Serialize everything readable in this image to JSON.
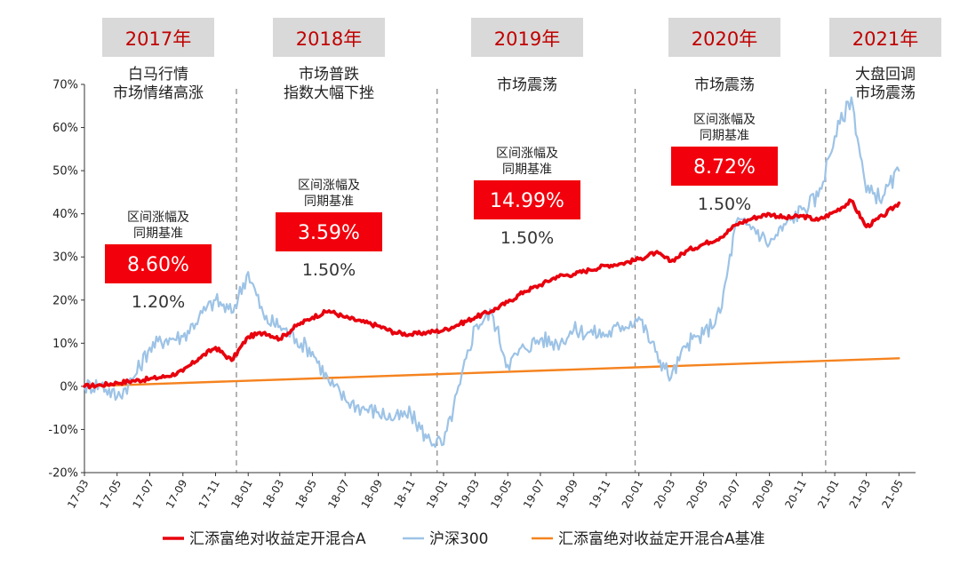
{
  "chart_data": {
    "type": "line",
    "title": "",
    "xlabel": "",
    "ylabel": "",
    "ylim": [
      -20,
      70
    ],
    "yticks": [
      -20,
      -10,
      0,
      10,
      20,
      30,
      40,
      50,
      60,
      70
    ],
    "ytick_labels": [
      "-20%",
      "-10%",
      "0%",
      "10%",
      "20%",
      "30%",
      "40%",
      "50%",
      "60%",
      "70%"
    ],
    "xlim": [
      "2017-03",
      "2021-06"
    ],
    "xtick_labels": [
      "17-03",
      "17-05",
      "17-07",
      "17-09",
      "17-11",
      "18-01",
      "18-03",
      "18-05",
      "18-07",
      "18-09",
      "18-11",
      "19-01",
      "19-03",
      "19-05",
      "19-07",
      "19-09",
      "19-11",
      "20-01",
      "20-03",
      "20-05",
      "20-07",
      "20-09",
      "20-11",
      "21-01",
      "21-03",
      "21-05"
    ],
    "grid": false,
    "legend_position": "bottom",
    "colors": {
      "fund": "#e8000d",
      "hs300": "#9dc3e6",
      "benchmark": "#f5831f",
      "year_box": "#d9d9d9",
      "year_text": "#c00000",
      "value_box": "#f2000c"
    },
    "series": [
      {
        "name": "汇添富绝对收益定开混合A",
        "x": [
          "2017-03",
          "2017-04",
          "2017-05",
          "2017-06",
          "2017-07",
          "2017-08",
          "2017-09",
          "2017-10",
          "2017-11",
          "2017-12",
          "2018-01",
          "2018-02",
          "2018-03",
          "2018-04",
          "2018-05",
          "2018-06",
          "2018-07",
          "2018-08",
          "2018-09",
          "2018-10",
          "2018-11",
          "2018-12",
          "2019-01",
          "2019-02",
          "2019-03",
          "2019-04",
          "2019-05",
          "2019-06",
          "2019-07",
          "2019-08",
          "2019-09",
          "2019-10",
          "2019-11",
          "2019-12",
          "2020-01",
          "2020-02",
          "2020-03",
          "2020-04",
          "2020-05",
          "2020-06",
          "2020-07",
          "2020-08",
          "2020-09",
          "2020-10",
          "2020-11",
          "2020-12",
          "2021-01",
          "2021-02",
          "2021-03",
          "2021-04",
          "2021-05"
        ],
        "values": [
          0,
          0.3,
          0.8,
          1.3,
          1.7,
          2.3,
          3.5,
          6.5,
          9.0,
          6.0,
          11.5,
          12.5,
          11.0,
          14.0,
          16.0,
          17.5,
          16.0,
          15.0,
          14.0,
          12.5,
          12.0,
          12.5,
          13.0,
          14.5,
          16.0,
          17.5,
          19.5,
          22.0,
          23.5,
          25.5,
          26.0,
          27.0,
          28.0,
          28.5,
          29.5,
          31.0,
          29.0,
          31.5,
          33.0,
          34.5,
          37.5,
          39.0,
          40.0,
          39.0,
          39.5,
          38.5,
          40.5,
          43.0,
          37.0,
          39.5,
          42.5
        ]
      },
      {
        "name": "沪深300",
        "x": [
          "2017-03",
          "2017-04",
          "2017-05",
          "2017-06",
          "2017-07",
          "2017-08",
          "2017-09",
          "2017-10",
          "2017-11",
          "2017-12",
          "2018-01",
          "2018-02",
          "2018-03",
          "2018-04",
          "2018-05",
          "2018-06",
          "2018-07",
          "2018-08",
          "2018-09",
          "2018-10",
          "2018-11",
          "2018-12",
          "2019-01",
          "2019-02",
          "2019-03",
          "2019-04",
          "2019-05",
          "2019-06",
          "2019-07",
          "2019-08",
          "2019-09",
          "2019-10",
          "2019-11",
          "2019-12",
          "2020-01",
          "2020-02",
          "2020-03",
          "2020-04",
          "2020-05",
          "2020-06",
          "2020-07",
          "2020-08",
          "2020-09",
          "2020-10",
          "2020-11",
          "2020-12",
          "2021-01",
          "2021-02",
          "2021-03",
          "2021-04",
          "2021-05"
        ],
        "values": [
          0,
          0.5,
          -2.5,
          2.0,
          9.0,
          11.0,
          11.5,
          16.0,
          20.0,
          17.0,
          26.5,
          15.5,
          14.0,
          11.0,
          8.0,
          1.0,
          -3.0,
          -5.0,
          -6.0,
          -7.5,
          -6.5,
          -12.0,
          -13.5,
          0.5,
          14.0,
          17.0,
          5.0,
          9.0,
          11.0,
          10.0,
          13.0,
          12.5,
          12.0,
          14.0,
          16.0,
          8.0,
          2.0,
          10.0,
          12.0,
          17.0,
          38.0,
          37.0,
          33.0,
          37.5,
          41.0,
          44.0,
          58.0,
          67.0,
          45.0,
          44.0,
          50.0
        ]
      },
      {
        "name": "汇添富绝对收益定开混合A基准",
        "x": [
          "2017-03",
          "2021-05"
        ],
        "values": [
          0,
          6.5
        ]
      }
    ],
    "periods": [
      {
        "year": "2017年",
        "desc": [
          "白马行情",
          "市场情绪高涨"
        ],
        "note": [
          "区间涨幅及",
          "同期基准"
        ],
        "value": "8.60%",
        "benchmark": "1.20%"
      },
      {
        "year": "2018年",
        "desc": [
          "市场普跌",
          "指数大幅下挫"
        ],
        "note": [
          "区间涨幅及",
          "同期基准"
        ],
        "value": "3.59%",
        "benchmark": "1.50%"
      },
      {
        "year": "2019年",
        "desc": [
          "市场震荡"
        ],
        "note": [
          "区间涨幅及",
          "同期基准"
        ],
        "value": "14.99%",
        "benchmark": "1.50%"
      },
      {
        "year": "2020年",
        "desc": [
          "市场震荡"
        ],
        "note": [
          "区间涨幅及",
          "同期基准"
        ],
        "value": "8.72%",
        "benchmark": "1.50%"
      },
      {
        "year": "2021年",
        "desc": [
          "大盘回调",
          "市场震荡"
        ],
        "note": [],
        "value": "",
        "benchmark": ""
      }
    ],
    "period_boundaries": [
      "2017-12-10",
      "2018-12-20",
      "2019-12-25",
      "2020-12-15"
    ]
  }
}
